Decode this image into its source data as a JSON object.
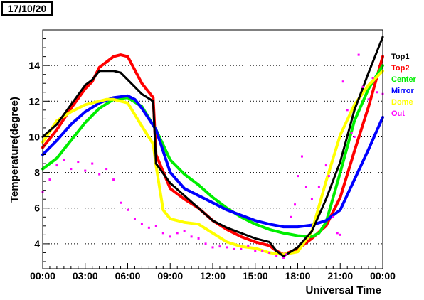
{
  "header": {
    "date": "17/10/20"
  },
  "chart_data": {
    "type": "scatter",
    "xlabel": "Universal Time",
    "ylabel": "Temperature(degree)",
    "xlim": [
      0,
      24
    ],
    "ylim": [
      2.6,
      16.0
    ],
    "x_ticks": [
      {
        "v": 0,
        "label": "00:00"
      },
      {
        "v": 3,
        "label": "03:00"
      },
      {
        "v": 6,
        "label": "06:00"
      },
      {
        "v": 9,
        "label": "09:00"
      },
      {
        "v": 12,
        "label": "12:00"
      },
      {
        "v": 15,
        "label": "15:00"
      },
      {
        "v": 18,
        "label": "18:00"
      },
      {
        "v": 21,
        "label": "21:00"
      },
      {
        "v": 24,
        "label": "00:00"
      }
    ],
    "y_ticks": [
      {
        "v": 4,
        "label": "4"
      },
      {
        "v": 6,
        "label": "6"
      },
      {
        "v": 8,
        "label": "8"
      },
      {
        "v": 10,
        "label": "10"
      },
      {
        "v": 12,
        "label": "12"
      },
      {
        "v": 14,
        "label": "14"
      }
    ],
    "grid": "horizontal dotted",
    "legend_position": "right",
    "series": [
      {
        "name": "Top1",
        "color": "#000000",
        "x": [
          0,
          1,
          2,
          3,
          3.5,
          4,
          5,
          5.5,
          6,
          7,
          7.8,
          8,
          9,
          10,
          11,
          12,
          13,
          14,
          15,
          16,
          16.5,
          17,
          18,
          19,
          20,
          21,
          22,
          23,
          24
        ],
        "y": [
          10,
          10.7,
          11.8,
          12.9,
          13.2,
          13.7,
          13.7,
          13.6,
          13.2,
          12.4,
          12.0,
          8.5,
          7.4,
          6.7,
          6.0,
          5.3,
          4.9,
          4.6,
          4.3,
          4.1,
          3.6,
          3.3,
          3.8,
          4.7,
          6.5,
          8.6,
          11.5,
          13.6,
          15.6
        ]
      },
      {
        "name": "Top2",
        "color": "#ff0000",
        "x": [
          0,
          1,
          2,
          3,
          3.5,
          4,
          5,
          5.5,
          6,
          7,
          7.8,
          8,
          9,
          10,
          11,
          12,
          13,
          14,
          15,
          16,
          16.5,
          17,
          18,
          19,
          20,
          21,
          22,
          23,
          24
        ],
        "y": [
          9.4,
          10.4,
          11.6,
          12.7,
          13.1,
          13.9,
          14.5,
          14.6,
          14.5,
          13.0,
          12.2,
          9.0,
          7.1,
          6.5,
          6.0,
          5.3,
          4.8,
          4.4,
          4.1,
          3.9,
          3.6,
          3.4,
          3.7,
          4.3,
          5.0,
          6.6,
          9.2,
          11.7,
          14.5
        ]
      },
      {
        "name": "Center",
        "color": "#00ee00",
        "x": [
          0,
          1,
          2,
          3,
          4,
          5,
          6,
          7,
          8,
          9,
          10,
          11,
          12,
          13,
          14,
          15,
          16,
          17,
          18,
          19,
          19.5,
          20,
          21,
          22,
          23,
          24
        ],
        "y": [
          8.2,
          8.8,
          9.8,
          10.8,
          11.6,
          12.1,
          12.2,
          11.7,
          10.4,
          8.7,
          7.9,
          7.3,
          6.6,
          6.0,
          5.5,
          5.1,
          4.8,
          4.6,
          4.45,
          4.4,
          4.6,
          5.2,
          8.0,
          10.9,
          12.7,
          14.0
        ]
      },
      {
        "name": "Mirror",
        "color": "#0000ff",
        "x": [
          0,
          1,
          2,
          3,
          4,
          5,
          6,
          6.5,
          7,
          8,
          9,
          10,
          11,
          12,
          13,
          14,
          15,
          16,
          17,
          18,
          19,
          20,
          21,
          22,
          23,
          24
        ],
        "y": [
          9.0,
          9.8,
          10.7,
          11.4,
          11.9,
          12.2,
          12.3,
          12.1,
          11.6,
          10.4,
          8.0,
          7.1,
          6.7,
          6.3,
          5.9,
          5.6,
          5.3,
          5.1,
          4.95,
          4.95,
          5.05,
          5.3,
          5.9,
          7.6,
          9.3,
          11.1
        ]
      },
      {
        "name": "Dome",
        "color": "#ffff00",
        "x": [
          0,
          1,
          2,
          3,
          4,
          4.5,
          5,
          6,
          7,
          7.8,
          8,
          8.5,
          9,
          10,
          11,
          12,
          13,
          14,
          15,
          16,
          17,
          18,
          19,
          20,
          21,
          22,
          23,
          24
        ],
        "y": [
          9.7,
          10.9,
          11.4,
          11.8,
          12.0,
          12.1,
          12.1,
          11.9,
          10.6,
          9.6,
          8.4,
          5.9,
          5.4,
          5.2,
          5.1,
          4.6,
          4.1,
          3.85,
          3.75,
          3.5,
          3.4,
          3.55,
          4.7,
          7.5,
          10.1,
          11.8,
          12.9,
          13.7
        ]
      },
      {
        "name": "Out",
        "color": "#ff00ff",
        "x": [
          0,
          0.5,
          1,
          1.5,
          2,
          2.5,
          3,
          3.5,
          4,
          4.5,
          5,
          5.5,
          6,
          6.5,
          7,
          7.5,
          8,
          8.5,
          9,
          9.5,
          10,
          10.5,
          11,
          11.5,
          12,
          12.5,
          13,
          13.5,
          14,
          14.5,
          15,
          15.5,
          16,
          16.5,
          17,
          17.2,
          17.5,
          17.8,
          18,
          18.3,
          18.6,
          19,
          19.5,
          20,
          20.2,
          20.5,
          20.8,
          21,
          21.2,
          21.5,
          21.8,
          22,
          22.3,
          22.6,
          23,
          23.3,
          23.6,
          24
        ],
        "y": [
          6.9,
          7.6,
          8.4,
          8.7,
          8.2,
          8.6,
          8.1,
          8.5,
          7.9,
          8.2,
          7.6,
          6.3,
          5.9,
          5.4,
          5.1,
          4.9,
          5.0,
          4.6,
          4.4,
          4.6,
          4.7,
          4.4,
          4.3,
          4.0,
          3.8,
          3.85,
          3.8,
          3.7,
          3.7,
          3.9,
          3.6,
          3.6,
          3.5,
          3.3,
          3.2,
          3.4,
          5.5,
          6.2,
          7.8,
          8.9,
          7.2,
          6.5,
          7.2,
          8.4,
          7.8,
          5.5,
          4.6,
          4.5,
          13.1,
          11.5,
          10.2,
          10.0,
          14.6,
          12.8,
          12.1,
          13.3,
          12.5,
          12.4
        ]
      }
    ]
  }
}
